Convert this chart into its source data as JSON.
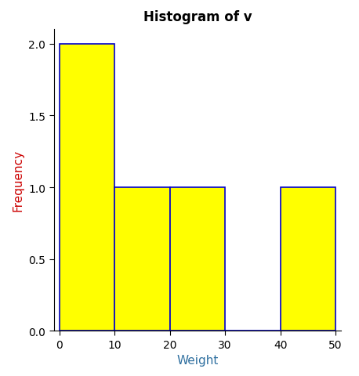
{
  "title": "Histogram of v",
  "xlabel": "Weight",
  "ylabel": "Frequency",
  "bar_edges": [
    0,
    10,
    20,
    30,
    40,
    50
  ],
  "bar_heights": [
    2,
    1,
    1,
    0,
    1
  ],
  "bar_color": "#FFFF00",
  "bar_edge_color": "#0000CC",
  "bar_linewidth": 1.2,
  "xlim": [
    -1,
    51
  ],
  "ylim": [
    0,
    2.1
  ],
  "yticks": [
    0.0,
    0.5,
    1.0,
    1.5,
    2.0
  ],
  "xticks": [
    0,
    10,
    20,
    30,
    40,
    50
  ],
  "title_fontsize": 12,
  "xlabel_fontsize": 11,
  "ylabel_fontsize": 11,
  "tick_fontsize": 10,
  "background_color": "#FFFFFF",
  "title_fontweight": "bold",
  "xlabel_color": "#3070A0",
  "ylabel_color": "#CC0000",
  "tick_label_color": "#000000"
}
